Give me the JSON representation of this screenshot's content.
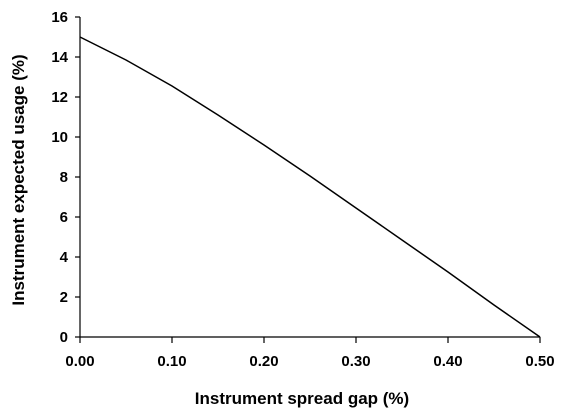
{
  "chart_data": {
    "type": "line",
    "title": "",
    "xlabel": "Instrument spread gap (%)",
    "ylabel": "Instrument expected usage (%)",
    "xlim": [
      0.0,
      0.5
    ],
    "ylim": [
      0,
      16
    ],
    "x_ticks": [
      "0.00",
      "0.10",
      "0.20",
      "0.30",
      "0.40",
      "0.50"
    ],
    "y_ticks": [
      "0",
      "2",
      "4",
      "6",
      "8",
      "10",
      "12",
      "14",
      "16"
    ],
    "grid": false,
    "legend": "none",
    "series": [
      {
        "color": "#000000",
        "x": [
          0.0,
          0.05,
          0.1,
          0.15,
          0.2,
          0.25,
          0.3,
          0.35,
          0.4,
          0.45,
          0.5
        ],
        "y": [
          15.0,
          13.85,
          12.55,
          11.1,
          9.6,
          8.05,
          6.45,
          4.85,
          3.25,
          1.6,
          0.0
        ]
      }
    ]
  }
}
